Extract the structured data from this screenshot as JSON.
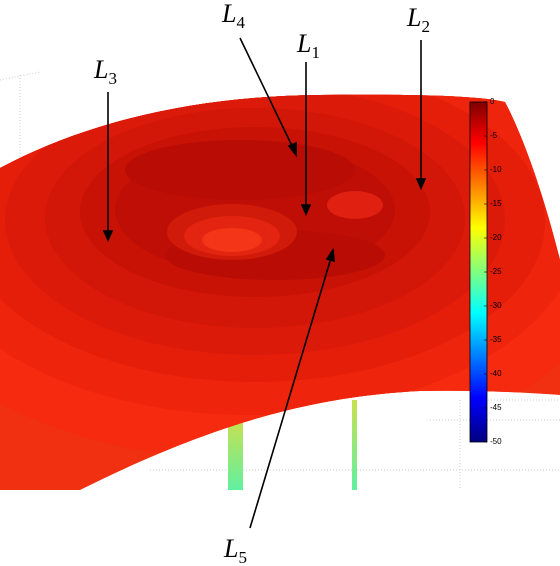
{
  "chart_data": {
    "type": "surface",
    "colorbar": {
      "lim": [
        -50,
        0
      ],
      "ticks": [
        0,
        -5,
        -10,
        -15,
        -20,
        -25,
        -30,
        -35,
        -40,
        -45,
        -50
      ],
      "colormap": "jet"
    },
    "annotations": [
      {
        "text": "L",
        "sub": "1"
      },
      {
        "text": "L",
        "sub": "2"
      },
      {
        "text": "L",
        "sub": "3"
      },
      {
        "text": "L",
        "sub": "4"
      },
      {
        "text": "L",
        "sub": "5"
      }
    ]
  }
}
